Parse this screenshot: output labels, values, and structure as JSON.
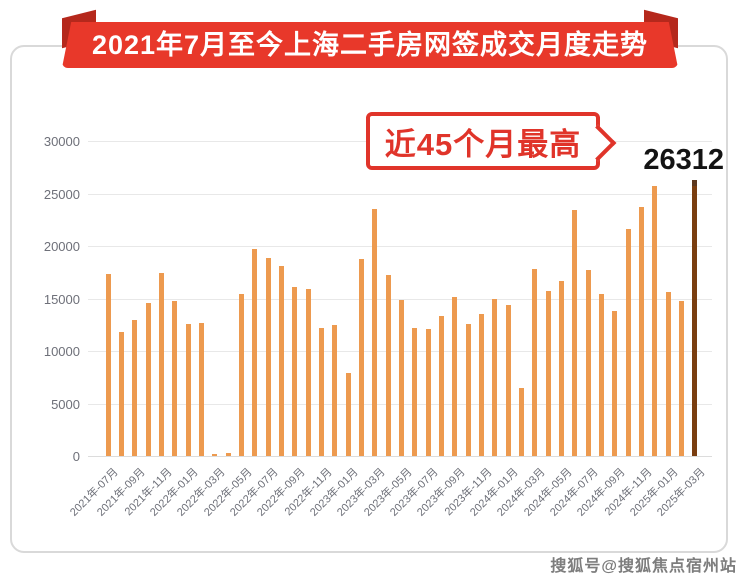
{
  "banner": {
    "title": "2021年7月至今上海二手房网签成交月度走势"
  },
  "callout": {
    "label": "近45个月最高",
    "value": "26312"
  },
  "watermark": {
    "text": "搜狐号@搜狐焦点宿州站"
  },
  "colors": {
    "banner_bg": "#e8382a",
    "banner_fold": "#b5281c",
    "callout_red": "#e0342a",
    "bar_orange": "#ed9a4f",
    "bar_dark": "#7a3e10",
    "grid_gray": "#e8e8e8",
    "axis_text": "#6e7079",
    "peak_text": "#141414",
    "watermark_gray": "#7d7d7d"
  },
  "chart_data": {
    "type": "bar",
    "title": "2021年7月至今上海二手房网签成交月度走势",
    "xlabel": "",
    "ylabel": "",
    "ylim": [
      0,
      30000
    ],
    "grid": true,
    "legend": "none",
    "bar_color": "#ed9a4f",
    "highlight_color": "#7a3e10",
    "highlight_index": 44,
    "highlight_value": 26312,
    "annotation": "近45个月最高",
    "y_ticks": [
      "0",
      "5000",
      "10000",
      "15000",
      "20000",
      "25000",
      "30000"
    ],
    "categories": [
      "2021-07",
      "2021-08",
      "2021-09",
      "2021-10",
      "2021-11",
      "2021-12",
      "2022-01",
      "2022-02",
      "2022-03",
      "2022-04",
      "2022-05",
      "2022-06",
      "2022-07",
      "2022-08",
      "2022-09",
      "2022-10",
      "2022-11",
      "2022-12",
      "2023-01",
      "2023-02",
      "2023-03",
      "2023-04",
      "2023-05",
      "2023-06",
      "2023-07",
      "2023-08",
      "2023-09",
      "2023-10",
      "2023-11",
      "2023-12",
      "2024-01",
      "2024-02",
      "2024-03",
      "2024-04",
      "2024-05",
      "2024-06",
      "2024-07",
      "2024-08",
      "2024-09",
      "2024-10",
      "2024-11",
      "2024-12",
      "2025-01",
      "2025-02",
      "2025-03"
    ],
    "values": [
      17300,
      11800,
      13000,
      14600,
      17450,
      14800,
      12600,
      12650,
      150,
      300,
      15450,
      19700,
      18900,
      18100,
      16100,
      15900,
      12200,
      12500,
      7900,
      18800,
      23550,
      17200,
      14850,
      12200,
      12050,
      13350,
      15150,
      12600,
      13500,
      15000,
      14350,
      6500,
      17850,
      15700,
      16650,
      23450,
      17700,
      15450,
      13800,
      21650,
      23700,
      25700,
      15650,
      14800,
      26312
    ],
    "x_tick_labels": [
      "2021年-07月",
      "2021年-09月",
      "2021年-11月",
      "2022年-01月",
      "2022年-03月",
      "2022年-05月",
      "2022年-07月",
      "2022年-09月",
      "2022年-11月",
      "2023年-01月",
      "2023年-03月",
      "2023年-05月",
      "2023年-07月",
      "2023年-09月",
      "2023年-11月",
      "2024年-01月",
      "2024年-03月",
      "2024年-05月",
      "2024年-07月",
      "2024年-09月",
      "2024年-11月",
      "2025年-01月",
      "2025年-03月"
    ]
  }
}
